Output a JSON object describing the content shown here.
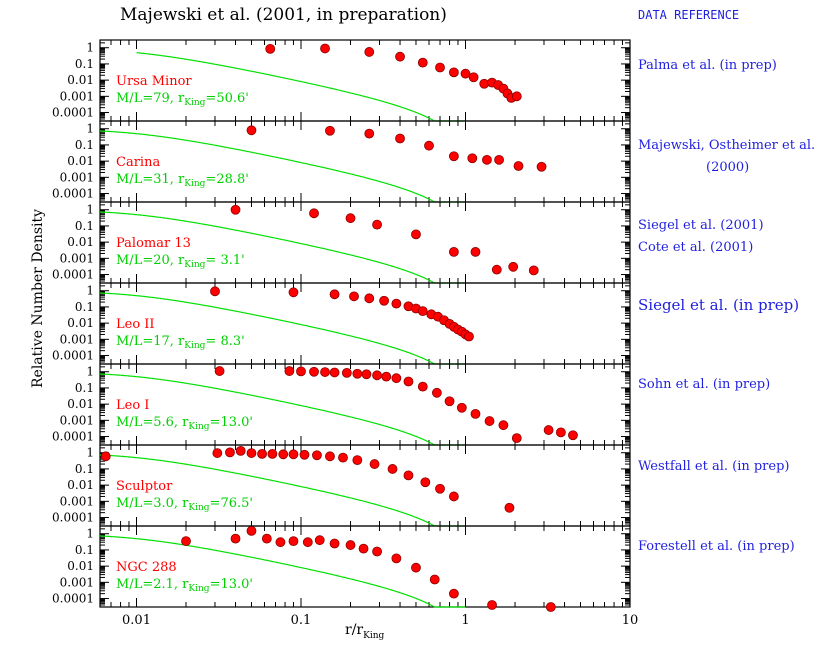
{
  "title": "Majewski et al. (2001, in preparation)",
  "data_reference_header": "DATA REFERENCE",
  "ylabel": "Relative Number Density",
  "xlabel_main": "r/r",
  "xlabel_sub": "King",
  "colors": {
    "points": "#ff0000",
    "model": "#00e000",
    "name": "#ff0000",
    "params": "#00d000",
    "refs": "#1f1fe0"
  },
  "references": [
    "Palma et al. (in prep)",
    "Majewski, Ostheimer et al.",
    "(2000)",
    "Siegel et al. (2001)",
    "Cote et al. (2001)",
    "Siegel et al. (in prep)",
    "Sohn et al. (in prep)",
    "Westfall et al. (in prep)",
    "Forestell et al. (in prep)"
  ],
  "chart_data": {
    "type": "scatter",
    "xscale": "log",
    "yscale": "log",
    "xlim": [
      0.006,
      10
    ],
    "ylim": [
      3e-05,
      3
    ],
    "xtick_labels": [
      "0.01",
      "0.1",
      "1",
      "10"
    ],
    "xtick_values": [
      0.01,
      0.1,
      1,
      10
    ],
    "ytick_labels": [
      "1",
      "0.1",
      "0.01",
      "0.001",
      "0.0001"
    ],
    "ytick_values": [
      1,
      0.1,
      0.01,
      0.001,
      0.0001
    ],
    "panels": [
      {
        "name": "Ursa Minor",
        "ml_label": "M/L=79,  r",
        "rking_sub": "King",
        "rking_val": "=50.6'",
        "model_x_start": 0.01,
        "points": [
          [
            0.065,
            0.85
          ],
          [
            0.14,
            0.9
          ],
          [
            0.26,
            0.55
          ],
          [
            0.4,
            0.28
          ],
          [
            0.55,
            0.12
          ],
          [
            0.7,
            0.06
          ],
          [
            0.85,
            0.03
          ],
          [
            1.0,
            0.025
          ],
          [
            1.12,
            0.015
          ],
          [
            1.3,
            0.006
          ],
          [
            1.45,
            0.007
          ],
          [
            1.58,
            0.005
          ],
          [
            1.7,
            0.003
          ],
          [
            1.8,
            0.0015
          ],
          [
            1.9,
            0.0008
          ],
          [
            2.05,
            0.001
          ]
        ]
      },
      {
        "name": "Carina",
        "ml_label": "M/L=31,  r",
        "rking_sub": "King",
        "rking_val": "=28.8'",
        "model_x_start": 0.006,
        "points": [
          [
            0.05,
            0.8
          ],
          [
            0.15,
            0.75
          ],
          [
            0.26,
            0.5
          ],
          [
            0.4,
            0.25
          ],
          [
            0.6,
            0.09
          ],
          [
            0.85,
            0.02
          ],
          [
            1.1,
            0.015
          ],
          [
            1.35,
            0.012
          ],
          [
            1.6,
            0.012
          ],
          [
            2.1,
            0.005
          ],
          [
            2.9,
            0.0045
          ]
        ]
      },
      {
        "name": "Palomar 13",
        "ml_label": "M/L=20,  r",
        "rking_sub": "King",
        "rking_val": "=  3.1'",
        "model_x_start": 0.006,
        "points": [
          [
            0.04,
            1.0
          ],
          [
            0.12,
            0.6
          ],
          [
            0.2,
            0.3
          ],
          [
            0.29,
            0.12
          ],
          [
            0.5,
            0.03
          ],
          [
            0.85,
            0.0025
          ],
          [
            1.15,
            0.0025
          ],
          [
            1.55,
            0.0002
          ],
          [
            1.95,
            0.0003
          ],
          [
            2.6,
            0.00018
          ]
        ]
      },
      {
        "name": "Leo II",
        "ml_label": "M/L=17,  r",
        "rking_sub": "King",
        "rking_val": "=  8.3'",
        "model_x_start": 0.006,
        "points": [
          [
            0.03,
            0.92
          ],
          [
            0.09,
            0.8
          ],
          [
            0.16,
            0.6
          ],
          [
            0.21,
            0.45
          ],
          [
            0.26,
            0.34
          ],
          [
            0.32,
            0.24
          ],
          [
            0.38,
            0.16
          ],
          [
            0.45,
            0.11
          ],
          [
            0.5,
            0.08
          ],
          [
            0.55,
            0.055
          ],
          [
            0.62,
            0.035
          ],
          [
            0.68,
            0.025
          ],
          [
            0.74,
            0.015
          ],
          [
            0.8,
            0.009
          ],
          [
            0.85,
            0.006
          ],
          [
            0.9,
            0.004
          ],
          [
            0.95,
            0.003
          ],
          [
            1.0,
            0.002
          ],
          [
            1.05,
            0.0015
          ]
        ]
      },
      {
        "name": "Leo I",
        "ml_label": "M/L=5.6,  r",
        "rking_sub": "King",
        "rking_val": "=13.0'",
        "model_x_start": 0.006,
        "points": [
          [
            0.032,
            1.1
          ],
          [
            0.085,
            1.1
          ],
          [
            0.1,
            1.05
          ],
          [
            0.12,
            1.0
          ],
          [
            0.14,
            0.95
          ],
          [
            0.16,
            0.9
          ],
          [
            0.19,
            0.85
          ],
          [
            0.22,
            0.75
          ],
          [
            0.25,
            0.7
          ],
          [
            0.29,
            0.6
          ],
          [
            0.33,
            0.5
          ],
          [
            0.38,
            0.4
          ],
          [
            0.45,
            0.25
          ],
          [
            0.55,
            0.12
          ],
          [
            0.67,
            0.05
          ],
          [
            0.8,
            0.015
          ],
          [
            0.95,
            0.006
          ],
          [
            1.15,
            0.0025
          ],
          [
            1.4,
            0.0009
          ],
          [
            1.7,
            0.0005
          ],
          [
            2.05,
            8e-05
          ],
          [
            3.2,
            0.00025
          ],
          [
            3.8,
            0.00018
          ],
          [
            4.5,
            0.00012
          ]
        ]
      },
      {
        "name": "Sculptor",
        "ml_label": "M/L=3.0,  r",
        "rking_sub": "King",
        "rking_val": "=76.5'",
        "model_x_start": 0.006,
        "points": [
          [
            0.0065,
            0.6
          ],
          [
            0.031,
            0.95
          ],
          [
            0.037,
            1.05
          ],
          [
            0.043,
            1.3
          ],
          [
            0.05,
            0.95
          ],
          [
            0.058,
            0.85
          ],
          [
            0.067,
            0.85
          ],
          [
            0.078,
            0.8
          ],
          [
            0.09,
            0.8
          ],
          [
            0.105,
            0.75
          ],
          [
            0.125,
            0.7
          ],
          [
            0.15,
            0.6
          ],
          [
            0.18,
            0.5
          ],
          [
            0.22,
            0.35
          ],
          [
            0.28,
            0.2
          ],
          [
            0.36,
            0.1
          ],
          [
            0.45,
            0.04
          ],
          [
            0.57,
            0.015
          ],
          [
            0.7,
            0.006
          ],
          [
            0.85,
            0.002
          ],
          [
            1.85,
            0.0004
          ]
        ]
      },
      {
        "name": "NGC 288",
        "ml_label": "M/L=2.1,  r",
        "rking_sub": "King",
        "rking_val": "=13.0'",
        "model_x_start": 0.006,
        "points": [
          [
            0.02,
            0.35
          ],
          [
            0.04,
            0.5
          ],
          [
            0.05,
            1.5
          ],
          [
            0.062,
            0.5
          ],
          [
            0.075,
            0.3
          ],
          [
            0.09,
            0.35
          ],
          [
            0.11,
            0.3
          ],
          [
            0.13,
            0.4
          ],
          [
            0.16,
            0.25
          ],
          [
            0.2,
            0.2
          ],
          [
            0.24,
            0.12
          ],
          [
            0.29,
            0.08
          ],
          [
            0.38,
            0.03
          ],
          [
            0.5,
            0.008
          ],
          [
            0.65,
            0.0015
          ],
          [
            0.85,
            0.0002
          ],
          [
            1.45,
            4e-05
          ],
          [
            3.3,
            2e-05
          ]
        ]
      }
    ]
  }
}
